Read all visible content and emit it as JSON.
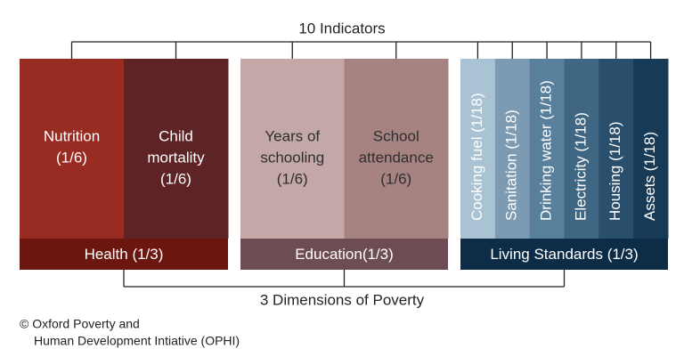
{
  "title": "10 Indicators",
  "dimensions": [
    {
      "label": "Health (1/3)",
      "color": "#6b160e",
      "text_color": "#ffffff",
      "indicators": [
        {
          "lines": [
            "Nutrition",
            "(1/6)"
          ],
          "color": "#982b22"
        },
        {
          "lines": [
            "Child",
            "mortality",
            "(1/6)"
          ],
          "color": "#5e2325"
        }
      ]
    },
    {
      "label": "Education(1/3)",
      "color": "#6d4c54",
      "text_color": "#2e2e2e",
      "indicators": [
        {
          "lines": [
            "Years of",
            "schooling",
            "(1/6)"
          ],
          "color": "#c4a7a7"
        },
        {
          "lines": [
            "School",
            "attendance",
            "(1/6)"
          ],
          "color": "#a68381"
        }
      ]
    },
    {
      "label": "Living Standards (1/3)",
      "color": "#0c2c47",
      "text_color": "#ffffff",
      "indicators": [
        {
          "lines": [
            "Cooking fuel (1/18)"
          ],
          "color": "#a9c3d5"
        },
        {
          "lines": [
            "Sanitation (1/18)"
          ],
          "color": "#7c9bb2"
        },
        {
          "lines": [
            "Drinking water (1/18)"
          ],
          "color": "#587f9c"
        },
        {
          "lines": [
            "Electricity (1/18)"
          ],
          "color": "#3f6783"
        },
        {
          "lines": [
            "Housing (1/18)"
          ],
          "color": "#2a4f6d"
        },
        {
          "lines": [
            "Assets (1/18)"
          ],
          "color": "#173a57"
        }
      ]
    }
  ],
  "subtitle": "3 Dimensions of Poverty",
  "credit": [
    "© Oxford Poverty and",
    "Human Development Intiative (OPHI)"
  ]
}
